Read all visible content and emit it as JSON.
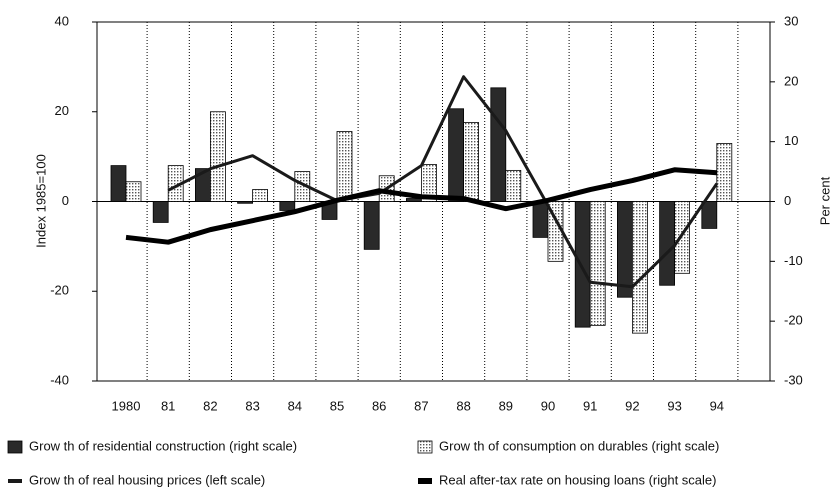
{
  "chart_data": {
    "type": "bar",
    "categories": [
      "1980",
      "81",
      "82",
      "83",
      "84",
      "85",
      "86",
      "87",
      "88",
      "89",
      "90",
      "91",
      "92",
      "93",
      "94"
    ],
    "y_label": "Index 1985=100",
    "y2_label": "Per cent",
    "ylim": [
      -40,
      40
    ],
    "yticks": [
      -40,
      -20,
      0,
      20,
      40
    ],
    "y2lim": [
      -30,
      30
    ],
    "y2ticks": [
      -30,
      -20,
      -10,
      0,
      10,
      20,
      30
    ],
    "grid": true,
    "series": [
      {
        "name": "Grow th of residential construction (right scale)",
        "type": "bar",
        "axis": "y2",
        "color": "#2a2a2a",
        "values": [
          6,
          -3.5,
          5.5,
          -0.3,
          -1.5,
          -3,
          -8,
          0.5,
          15.5,
          19,
          -6,
          -21,
          -16,
          -14,
          -4.5
        ]
      },
      {
        "name": "Grow th of consumption on durables (right scale)",
        "type": "bar",
        "axis": "y2",
        "color": "#cccccc",
        "values": [
          3.3,
          6,
          15,
          2,
          5,
          11.7,
          4.3,
          6.2,
          13.2,
          5.2,
          -10,
          -20.7,
          -22,
          -12,
          9.7
        ]
      },
      {
        "name": "Grow th of real housing prices (left scale)",
        "type": "line",
        "color": "#1a1a1a",
        "values": [
          null,
          2.5,
          7.3,
          10.2,
          4.7,
          0.2,
          1.8,
          8,
          27.8,
          15.8,
          -0.9,
          -18,
          -19,
          -9.8,
          4
        ]
      },
      {
        "name": "Real after-tax rate on housing loans (right scale)",
        "type": "line",
        "axis": "y2",
        "color": "#000000",
        "values": [
          -6,
          -6.8,
          -4.7,
          -3.2,
          -1.7,
          0.2,
          1.8,
          0.8,
          0.5,
          -1.2,
          0.2,
          2,
          3.5,
          5.3,
          4.8
        ]
      }
    ]
  }
}
